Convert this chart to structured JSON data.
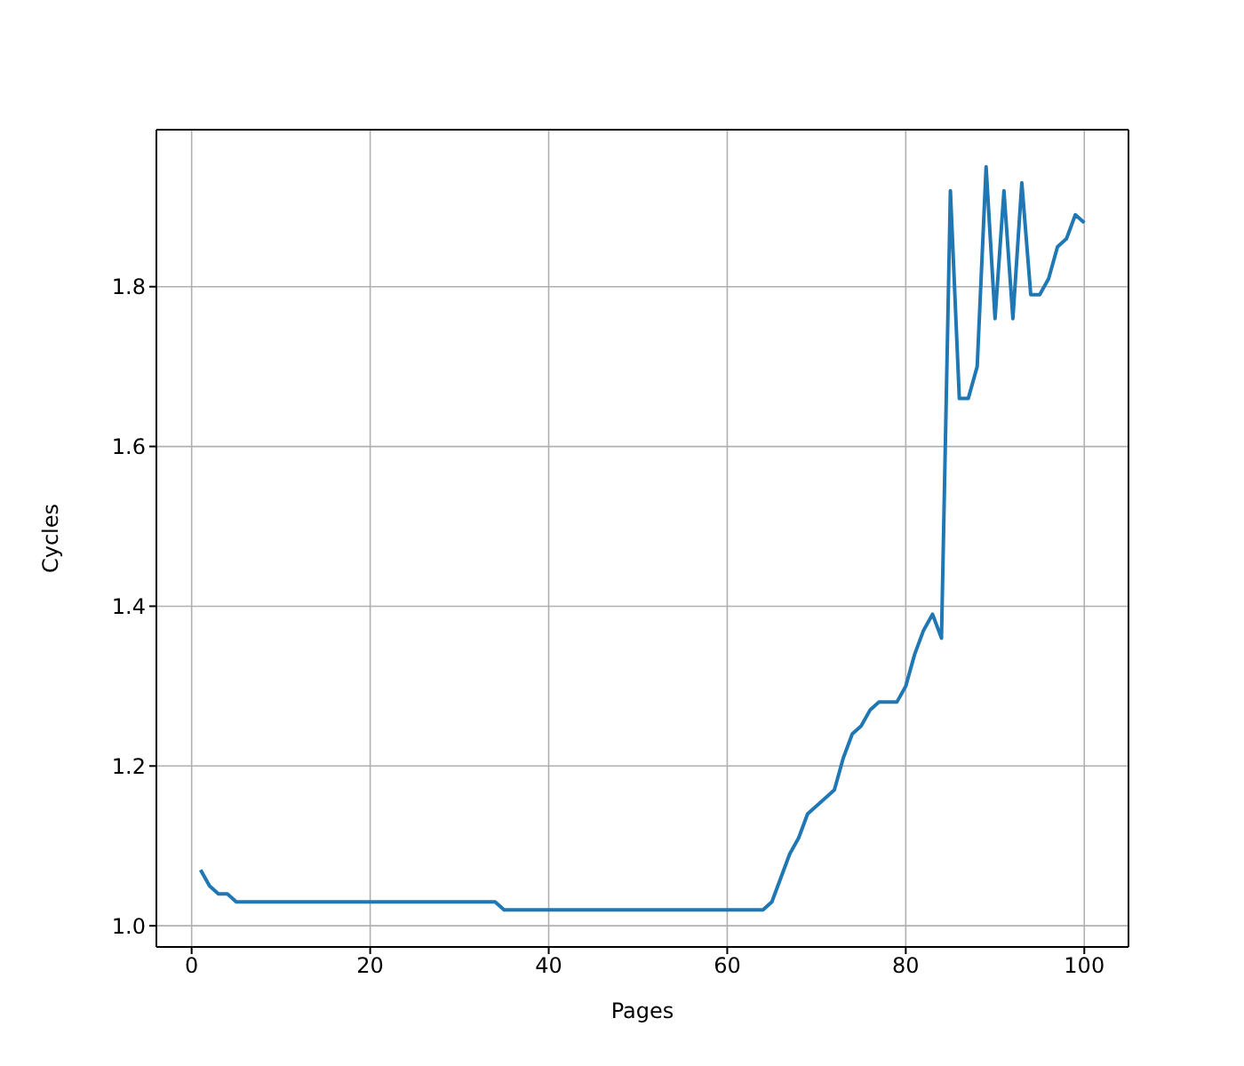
{
  "chart_data": {
    "type": "line",
    "xlabel": "Pages",
    "ylabel": "Cycles",
    "x": [
      1,
      2,
      3,
      4,
      5,
      34,
      35,
      64,
      65,
      66,
      67,
      68,
      69,
      70,
      71,
      72,
      73,
      74,
      75,
      76,
      77,
      78,
      79,
      80,
      81,
      82,
      83,
      84,
      85,
      86,
      87,
      88,
      89,
      90,
      91,
      92,
      93,
      94,
      95,
      96,
      97,
      98,
      99,
      100
    ],
    "series": [
      {
        "color": "#1f77b4",
        "values": [
          1.07,
          1.05,
          1.04,
          1.04,
          1.03,
          1.03,
          1.02,
          1.02,
          1.03,
          1.06,
          1.09,
          1.11,
          1.14,
          1.15,
          1.16,
          1.17,
          1.21,
          1.24,
          1.25,
          1.27,
          1.28,
          1.28,
          1.28,
          1.3,
          1.34,
          1.37,
          1.39,
          1.36,
          1.92,
          1.66,
          1.66,
          1.7,
          1.95,
          1.76,
          1.92,
          1.76,
          1.93,
          1.79,
          1.79,
          1.81,
          1.85,
          1.86,
          1.89,
          1.88
        ]
      }
    ],
    "xlim": [
      -3.95,
      104.95
    ],
    "xticks": [
      0,
      20,
      40,
      60,
      80,
      100
    ],
    "ylim": [
      0.9735,
      1.9965
    ],
    "yticks": [
      {
        "value": 1,
        "label": "1.0"
      },
      {
        "value": 1.2,
        "label": "1.2"
      },
      {
        "value": 1.4,
        "label": "1.4"
      },
      {
        "value": 1.6,
        "label": "1.6"
      },
      {
        "value": 1.8,
        "label": "1.8"
      }
    ],
    "grid": true,
    "marker": "none",
    "line_style": "solid"
  }
}
